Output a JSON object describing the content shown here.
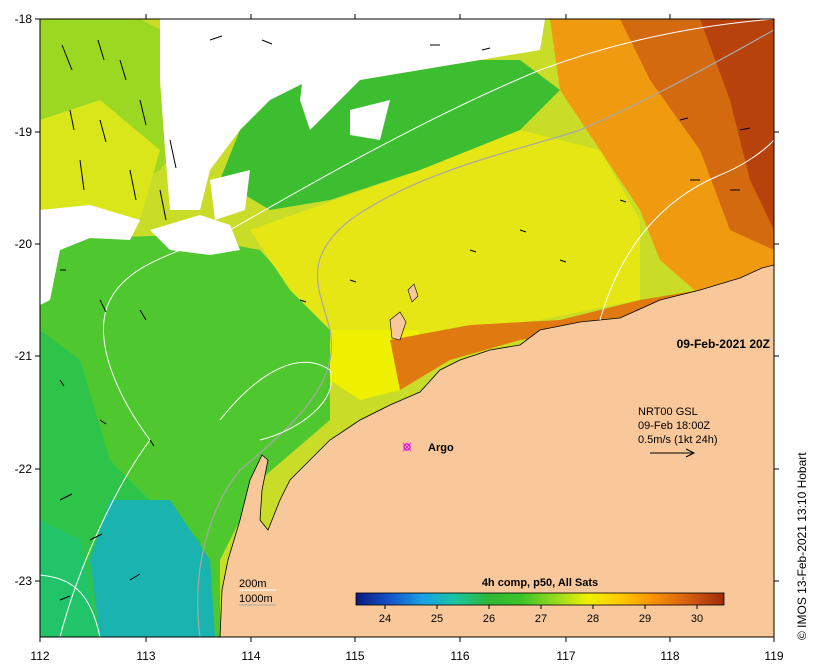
{
  "map": {
    "x_ticks": [
      "112",
      "113",
      "114",
      "115",
      "116",
      "117",
      "118",
      "119"
    ],
    "y_ticks": [
      "-18",
      "-19",
      "-20",
      "-21",
      "-22",
      "-23"
    ],
    "timestamp": "09-Feb-2021 20Z",
    "credit": "© IMOS 13-Feb-2021 13:10 Hobart"
  },
  "current_info": {
    "line1": "NRT00 GSL",
    "line2": "09-Feb 18:00Z",
    "line3": "0.5m/s (1kt 24h)"
  },
  "argo": {
    "label": "Argo"
  },
  "contours": {
    "label_200": "200m",
    "label_1000": "1000m"
  },
  "colorbar": {
    "title": "4h comp, p50, All Sats",
    "ticks": [
      "24",
      "25",
      "26",
      "27",
      "28",
      "29",
      "30"
    ],
    "colors": [
      "#0a1a80",
      "#1452c8",
      "#1aa0e6",
      "#19c4a0",
      "#2eb836",
      "#3ec428",
      "#9cdc1e",
      "#f0f000",
      "#ffc800",
      "#f59000",
      "#d86010",
      "#a02a0a"
    ]
  },
  "colors": {
    "land": "#f8c89a",
    "no_data": "#ffffff",
    "argo_marker": "#e020e0"
  }
}
